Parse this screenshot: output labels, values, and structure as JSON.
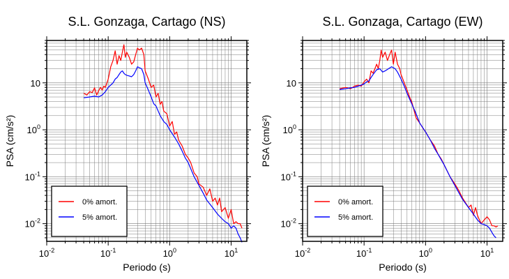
{
  "chart_data": [
    {
      "type": "line",
      "title": "S.L. Gonzaga, Cartago (NS)",
      "xlabel": "Periodo (s)",
      "ylabel": "PSA (cm/s²)",
      "xscale": "log",
      "yscale": "log",
      "xlim": [
        0.01,
        18
      ],
      "ylim": [
        0.0042,
        80
      ],
      "x_ticks": [
        {
          "value": 0.01,
          "base": "10",
          "exp": "-2"
        },
        {
          "value": 0.1,
          "base": "10",
          "exp": "-1"
        },
        {
          "value": 1,
          "base": "10",
          "exp": "0"
        },
        {
          "value": 10,
          "base": "10",
          "exp": "1"
        }
      ],
      "y_ticks": [
        {
          "value": 0.01,
          "base": "10",
          "exp": "-2"
        },
        {
          "value": 0.1,
          "base": "10",
          "exp": "-1"
        },
        {
          "value": 1,
          "base": "10",
          "exp": "0"
        },
        {
          "value": 10,
          "base": "10",
          "exp": ""
        }
      ],
      "grid": true,
      "legend_position": "bottom-left",
      "series": [
        {
          "name": "0% amort.",
          "color": "#ff0000",
          "x": [
            0.04,
            0.045,
            0.05,
            0.055,
            0.06,
            0.065,
            0.07,
            0.075,
            0.08,
            0.085,
            0.09,
            0.1,
            0.11,
            0.12,
            0.13,
            0.14,
            0.15,
            0.16,
            0.17,
            0.18,
            0.19,
            0.2,
            0.22,
            0.24,
            0.26,
            0.28,
            0.3,
            0.32,
            0.35,
            0.38,
            0.4,
            0.45,
            0.5,
            0.55,
            0.6,
            0.65,
            0.7,
            0.75,
            0.8,
            0.9,
            1.0,
            1.1,
            1.2,
            1.3,
            1.4,
            1.6,
            1.8,
            2.0,
            2.2,
            2.5,
            2.8,
            3.0,
            3.5,
            4.0,
            4.5,
            5.0,
            5.5,
            6.0,
            6.5,
            7.0,
            8.0,
            9.0,
            10.0,
            11.0,
            12.0,
            13.0,
            14.0,
            15.0
          ],
          "values": [
            6.0,
            5.5,
            6.5,
            6.2,
            7.8,
            5.5,
            6.8,
            8.0,
            7.0,
            8.5,
            8.0,
            12.0,
            22.0,
            30.0,
            48.0,
            25.0,
            38.0,
            30.0,
            45.0,
            65.0,
            35.0,
            45.0,
            35.0,
            25.0,
            28.0,
            40.0,
            55.0,
            50.0,
            55.0,
            40.0,
            18.0,
            12.0,
            8.0,
            9.0,
            5.0,
            6.0,
            3.5,
            4.0,
            2.5,
            2.2,
            1.2,
            1.5,
            0.8,
            0.9,
            0.6,
            0.45,
            0.3,
            0.25,
            0.2,
            0.12,
            0.1,
            0.07,
            0.06,
            0.04,
            0.055,
            0.03,
            0.035,
            0.025,
            0.035,
            0.018,
            0.022,
            0.013,
            0.02,
            0.01,
            0.011,
            0.01,
            0.01,
            0.008
          ]
        },
        {
          "name": "5% amort.",
          "color": "#0000ff",
          "x": [
            0.04,
            0.05,
            0.06,
            0.07,
            0.08,
            0.09,
            0.1,
            0.11,
            0.12,
            0.13,
            0.14,
            0.15,
            0.16,
            0.17,
            0.18,
            0.19,
            0.2,
            0.22,
            0.24,
            0.26,
            0.28,
            0.3,
            0.32,
            0.35,
            0.38,
            0.4,
            0.45,
            0.5,
            0.55,
            0.6,
            0.7,
            0.8,
            0.9,
            1.0,
            1.2,
            1.4,
            1.6,
            1.8,
            2.0,
            2.5,
            3.0,
            3.5,
            4.0,
            5.0,
            6.0,
            7.0,
            8.0,
            9.0,
            10.0,
            11.0,
            12.0,
            13.0,
            14.0,
            15.0
          ],
          "values": [
            4.8,
            5.0,
            5.2,
            5.0,
            5.5,
            6.5,
            8.0,
            9.0,
            10.0,
            12.0,
            13.0,
            15.0,
            17.0,
            18.0,
            16.0,
            15.0,
            14.5,
            14.0,
            13.5,
            15.0,
            18.0,
            22.0,
            21.0,
            20.0,
            15.0,
            10.0,
            7.0,
            5.0,
            3.6,
            3.2,
            2.0,
            1.5,
            1.3,
            1.0,
            0.7,
            0.5,
            0.35,
            0.25,
            0.2,
            0.1,
            0.065,
            0.045,
            0.032,
            0.022,
            0.016,
            0.013,
            0.011,
            0.01,
            0.008,
            0.009,
            0.008,
            0.006,
            0.005,
            0.004
          ]
        }
      ]
    },
    {
      "type": "line",
      "title": "S.L. Gonzaga, Cartago (EW)",
      "xlabel": "Periodo (s)",
      "ylabel": "PSA (cm/s²)",
      "xscale": "log",
      "yscale": "log",
      "xlim": [
        0.01,
        18
      ],
      "ylim": [
        0.0042,
        80
      ],
      "x_ticks": [
        {
          "value": 0.01,
          "base": "10",
          "exp": "-2"
        },
        {
          "value": 0.1,
          "base": "10",
          "exp": "-1"
        },
        {
          "value": 1,
          "base": "10",
          "exp": "0"
        },
        {
          "value": 10,
          "base": "10",
          "exp": "1"
        }
      ],
      "y_ticks": [
        {
          "value": 0.01,
          "base": "10",
          "exp": "-2"
        },
        {
          "value": 0.1,
          "base": "10",
          "exp": "-1"
        },
        {
          "value": 1,
          "base": "10",
          "exp": "0"
        },
        {
          "value": 10,
          "base": "10",
          "exp": ""
        }
      ],
      "grid": true,
      "legend_position": "bottom-left",
      "series": [
        {
          "name": "0% amort.",
          "color": "#ff0000",
          "x": [
            0.04,
            0.05,
            0.06,
            0.07,
            0.08,
            0.09,
            0.1,
            0.11,
            0.12,
            0.13,
            0.14,
            0.15,
            0.16,
            0.17,
            0.18,
            0.19,
            0.2,
            0.22,
            0.24,
            0.26,
            0.28,
            0.3,
            0.32,
            0.35,
            0.38,
            0.4,
            0.45,
            0.5,
            0.55,
            0.6,
            0.7,
            0.8,
            0.9,
            1.0,
            1.2,
            1.4,
            1.6,
            1.8,
            2.0,
            2.5,
            3.0,
            3.5,
            4.0,
            5.0,
            5.5,
            6.0,
            6.5,
            7.0,
            8.0,
            9.0,
            10.0,
            11.0,
            12.0,
            13.0,
            14.0,
            15.0
          ],
          "values": [
            7.5,
            8.0,
            7.5,
            8.5,
            9.0,
            8.5,
            10.5,
            12.0,
            10.0,
            18.0,
            16.0,
            20.0,
            25.0,
            20.0,
            30.0,
            50.0,
            35.0,
            45.0,
            30.0,
            40.0,
            50.0,
            25.0,
            45.0,
            25.0,
            20.0,
            15.0,
            10.0,
            7.0,
            5.0,
            3.8,
            1.8,
            1.4,
            1.1,
            0.9,
            0.6,
            0.45,
            0.3,
            0.24,
            0.18,
            0.1,
            0.07,
            0.05,
            0.035,
            0.022,
            0.025,
            0.015,
            0.022,
            0.015,
            0.01,
            0.012,
            0.014,
            0.012,
            0.009,
            0.009,
            0.0085,
            0.009
          ]
        },
        {
          "name": "5% amort.",
          "color": "#0000ff",
          "x": [
            0.04,
            0.05,
            0.06,
            0.07,
            0.08,
            0.09,
            0.1,
            0.11,
            0.12,
            0.13,
            0.14,
            0.15,
            0.16,
            0.18,
            0.2,
            0.22,
            0.25,
            0.28,
            0.3,
            0.32,
            0.35,
            0.4,
            0.45,
            0.5,
            0.6,
            0.7,
            0.8,
            1.0,
            1.2,
            1.4,
            1.6,
            2.0,
            2.5,
            3.0,
            3.5,
            4.0,
            5.0,
            6.0,
            7.0,
            8.0,
            9.0,
            10.0,
            11.0,
            12.0,
            13.0,
            14.0
          ],
          "values": [
            7.2,
            7.5,
            7.8,
            8.0,
            8.5,
            9.0,
            9.5,
            10.5,
            11.0,
            13.0,
            15.0,
            17.0,
            19.0,
            20.0,
            17.0,
            18.0,
            20.0,
            22.0,
            21.0,
            20.0,
            17.0,
            12.0,
            8.5,
            6.0,
            3.5,
            2.2,
            1.4,
            0.9,
            0.6,
            0.4,
            0.3,
            0.18,
            0.1,
            0.065,
            0.045,
            0.033,
            0.022,
            0.016,
            0.012,
            0.01,
            0.0095,
            0.009,
            0.008,
            0.0065,
            0.0055,
            0.005
          ]
        }
      ]
    }
  ]
}
